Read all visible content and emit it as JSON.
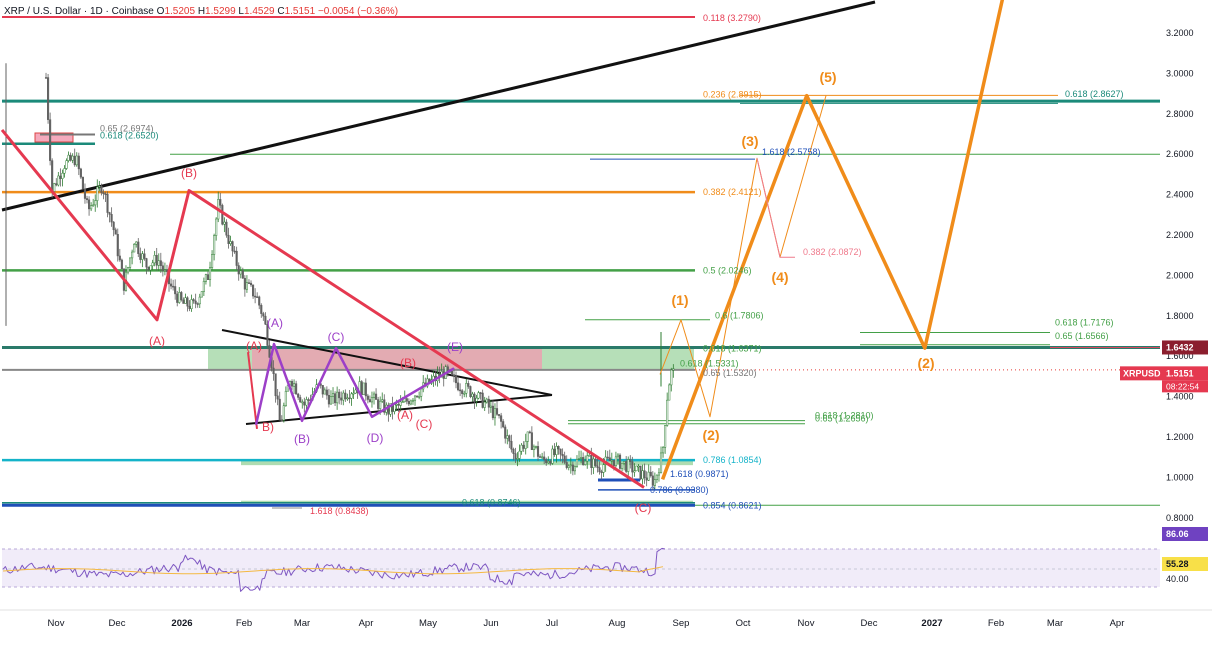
{
  "header": {
    "symbol": "XRP / U.S. Dollar · 1D · Coinbase",
    "o_label": "O",
    "o_value": "1.5205",
    "h_label": "H",
    "h_value": "1.5299",
    "l_label": "L",
    "l_value": "1.4529",
    "c_label": "C",
    "c_value": "1.5151",
    "change": "−0.0054 (−0.36%)"
  },
  "colors": {
    "red": "#e53950",
    "green": "#43a047",
    "teal": "#1b8a7a",
    "orange": "#f08c1a",
    "purple": "#9c3fc8",
    "black": "#111111",
    "blue": "#1f4fb8",
    "cyan": "#14b3c9",
    "pink": "#ef7a8c",
    "candle_up": "#2e7d32",
    "candle_down": "#616161"
  },
  "chart_data": [
    {
      "type": "candlestick",
      "title": "XRP / U.S. Dollar · 1D · Coinbase",
      "price_axis_ticks": [
        "3.2000",
        "3.0000",
        "2.8000",
        "2.6000",
        "2.4000",
        "2.2000",
        "2.0000",
        "1.8000",
        "1.6000",
        "1.4000",
        "1.2000",
        "1.0000",
        "0.8000"
      ],
      "time_axis_ticks": [
        "Nov",
        "Dec",
        "2026",
        "Feb",
        "Mar",
        "Apr",
        "May",
        "Jun",
        "Jul",
        "Aug",
        "Sep",
        "Oct",
        "Nov",
        "Dec",
        "2027",
        "Feb",
        "Mar",
        "Apr"
      ],
      "ylim": [
        0.78,
        3.38
      ],
      "grid": false,
      "price_path": [
        [
          "2025-10-13",
          2.98
        ],
        [
          "2025-10-16",
          2.42
        ],
        [
          "2025-10-22",
          2.55
        ],
        [
          "2025-10-28",
          2.58
        ],
        [
          "2025-11-03",
          2.32
        ],
        [
          "2025-11-10",
          2.45
        ],
        [
          "2025-11-16",
          2.22
        ],
        [
          "2025-11-21",
          1.95
        ],
        [
          "2025-11-26",
          2.18
        ],
        [
          "2025-12-02",
          2.05
        ],
        [
          "2025-12-08",
          2.08
        ],
        [
          "2025-12-14",
          1.95
        ],
        [
          "2025-12-20",
          1.86
        ],
        [
          "2025-12-26",
          1.85
        ],
        [
          "2026-01-02",
          2.0
        ],
        [
          "2026-01-07",
          2.35
        ],
        [
          "2026-01-14",
          2.12
        ],
        [
          "2026-01-20",
          1.96
        ],
        [
          "2026-01-26",
          1.9
        ],
        [
          "2026-01-30",
          1.78
        ],
        [
          "2026-02-03",
          1.55
        ],
        [
          "2026-02-07",
          1.26
        ],
        [
          "2026-02-12",
          1.5
        ],
        [
          "2026-02-19",
          1.36
        ],
        [
          "2026-02-26",
          1.45
        ],
        [
          "2026-03-05",
          1.38
        ],
        [
          "2026-03-12",
          1.42
        ],
        [
          "2026-03-19",
          1.45
        ],
        [
          "2026-03-26",
          1.38
        ],
        [
          "2026-04-02",
          1.33
        ],
        [
          "2026-04-09",
          1.36
        ],
        [
          "2026-04-16",
          1.42
        ],
        [
          "2026-04-23",
          1.47
        ],
        [
          "2026-04-30",
          1.52
        ],
        [
          "2026-05-07",
          1.46
        ],
        [
          "2026-05-14",
          1.42
        ],
        [
          "2026-05-21",
          1.36
        ],
        [
          "2026-05-28",
          1.28
        ],
        [
          "2026-06-04",
          1.1
        ],
        [
          "2026-06-11",
          1.2
        ],
        [
          "2026-06-18",
          1.08
        ],
        [
          "2026-06-25",
          1.12
        ],
        [
          "2026-07-02",
          1.06
        ],
        [
          "2026-07-09",
          1.1
        ],
        [
          "2026-07-16",
          1.05
        ],
        [
          "2026-07-23",
          1.09
        ],
        [
          "2026-07-30",
          1.06
        ],
        [
          "2026-08-06",
          1.02
        ],
        [
          "2026-08-13",
          0.98
        ],
        [
          "2026-08-17",
          1.12
        ],
        [
          "2026-08-19",
          1.38
        ],
        [
          "2026-08-21",
          1.52
        ],
        [
          "2026-08-23",
          1.5151
        ]
      ],
      "last_price": "1.5151",
      "price_tag": "XRPUSD",
      "countdown": "08:22:54",
      "marked_price": "1.6432",
      "fib_levels": [
        {
          "text": "0.118 (3.2790)",
          "value": 3.279,
          "color": "red"
        },
        {
          "text": "0.65 (2.6974)",
          "value": 2.6974,
          "color": "gray"
        },
        {
          "text": "0.618 (2.6520)",
          "value": 2.652,
          "color": "teal"
        },
        {
          "text": "0.236 (2.8915)",
          "value": 2.8915,
          "color": "orange"
        },
        {
          "text": "0.618 (2.8627)",
          "value": 2.8627,
          "color": "teal"
        },
        {
          "text": "1.618 (2.5758)",
          "value": 2.5758,
          "color": "blue"
        },
        {
          "text": "0.382 (2.4121)",
          "value": 2.4121,
          "color": "orange"
        },
        {
          "text": "0.382 (2.0872)",
          "value": 2.0872,
          "color": "pink"
        },
        {
          "text": "0.5 (2.0246)",
          "value": 2.0246,
          "color": "green"
        },
        {
          "text": "0.618 (1.7176)",
          "value": 1.7176,
          "color": "green"
        },
        {
          "text": "0.65 (1.6566)",
          "value": 1.6566,
          "color": "green"
        },
        {
          "text": "0.618 (1.6371)",
          "value": 1.6371,
          "color": "green"
        },
        {
          "text": "0.618 (1.5331)",
          "value": 1.5331,
          "color": "green"
        },
        {
          "text": "0.65 (1.5320)",
          "value": 1.532,
          "color": "gray"
        },
        {
          "text": "0.618 (1.2810)",
          "value": 1.281,
          "color": "green"
        },
        {
          "text": "0.65 (1.2656)",
          "value": 1.2656,
          "color": "green"
        },
        {
          "text": "0.786 (1.0854)",
          "value": 1.0854,
          "color": "cyan"
        },
        {
          "text": "1.618 (0.9871)",
          "value": 0.9871,
          "color": "blue"
        },
        {
          "text": "0.786 (0.9380)",
          "value": 0.938,
          "color": "blue"
        },
        {
          "text": "1.618 (0.8438)",
          "value": 0.8438,
          "color": "red"
        },
        {
          "text": "0.618 (0.8746)",
          "value": 0.8746,
          "color": "teal"
        },
        {
          "text": "0.854 (0.8621)",
          "value": 0.8621,
          "color": "blue"
        },
        {
          "text": "0.6 (1.7806)",
          "value": 1.7806,
          "color": "green"
        }
      ],
      "wave_labels": [
        {
          "text": "(A)",
          "color": "red"
        },
        {
          "text": "(B)",
          "color": "red"
        },
        {
          "text": "(C)",
          "color": "red"
        },
        {
          "text": "(A)",
          "color": "red"
        },
        {
          "text": "B)",
          "color": "red"
        },
        {
          "text": "(B)",
          "color": "red"
        },
        {
          "text": "(A)",
          "color": "red"
        },
        {
          "text": "(C)",
          "color": "red"
        },
        {
          "text": "(A)",
          "color": "purple"
        },
        {
          "text": "(B)",
          "color": "purple"
        },
        {
          "text": "(C)",
          "color": "purple"
        },
        {
          "text": "(D)",
          "color": "purple"
        },
        {
          "text": "(E)",
          "color": "purple"
        },
        {
          "text": "(1)",
          "color": "orange"
        },
        {
          "text": "(2)",
          "color": "orange"
        },
        {
          "text": "(3)",
          "color": "orange"
        },
        {
          "text": "(4)",
          "color": "orange"
        },
        {
          "text": "(5)",
          "color": "orange"
        },
        {
          "text": "(2)",
          "color": "orange"
        }
      ],
      "projection": [
        [
          "2026-08-17",
          0.99
        ],
        [
          "2026-10-28",
          2.89
        ],
        [
          "2026-12-26",
          1.64
        ],
        [
          "2027-02-08",
          3.6
        ]
      ]
    },
    {
      "type": "line",
      "indicator": "RSI",
      "axis_labels": [
        "40.00"
      ],
      "rsi_value": "86.06",
      "rsi_ma_value": "55.28",
      "ylim": [
        20,
        90
      ]
    }
  ]
}
